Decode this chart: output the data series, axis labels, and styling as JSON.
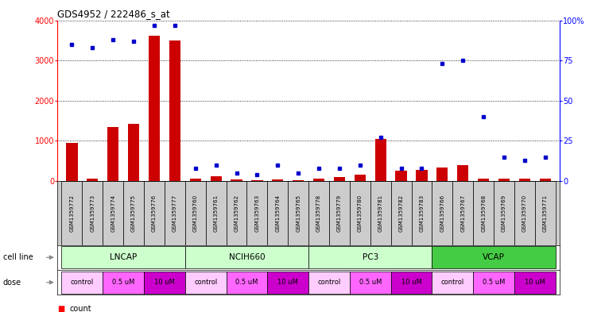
{
  "title": "GDS4952 / 222486_s_at",
  "samples": [
    "GSM1359772",
    "GSM1359773",
    "GSM1359774",
    "GSM1359775",
    "GSM1359776",
    "GSM1359777",
    "GSM1359760",
    "GSM1359761",
    "GSM1359762",
    "GSM1359763",
    "GSM1359764",
    "GSM1359765",
    "GSM1359778",
    "GSM1359779",
    "GSM1359780",
    "GSM1359781",
    "GSM1359782",
    "GSM1359783",
    "GSM1359766",
    "GSM1359767",
    "GSM1359768",
    "GSM1359769",
    "GSM1359770",
    "GSM1359771"
  ],
  "counts": [
    950,
    50,
    1350,
    1420,
    3620,
    3500,
    50,
    120,
    30,
    20,
    30,
    20,
    50,
    100,
    150,
    1050,
    250,
    280,
    330,
    390,
    50,
    60,
    60,
    60
  ],
  "percentile_ranks": [
    85,
    83,
    88,
    87,
    97,
    97,
    8,
    10,
    5,
    4,
    10,
    5,
    8,
    8,
    10,
    27,
    8,
    8,
    73,
    75,
    40,
    15,
    13,
    15
  ],
  "cell_line_data": [
    {
      "name": "LNCAP",
      "start": 0,
      "end": 6,
      "color": "#ccffcc"
    },
    {
      "name": "NCIH660",
      "start": 6,
      "end": 12,
      "color": "#ccffcc"
    },
    {
      "name": "PC3",
      "start": 12,
      "end": 18,
      "color": "#ccffcc"
    },
    {
      "name": "VCAP",
      "start": 18,
      "end": 24,
      "color": "#44cc44"
    }
  ],
  "dose_data": [
    {
      "label": "control",
      "start": 0,
      "end": 2,
      "color": "#ffccff"
    },
    {
      "label": "0.5 uM",
      "start": 2,
      "end": 4,
      "color": "#ff66ff"
    },
    {
      "label": "10 uM",
      "start": 4,
      "end": 6,
      "color": "#cc00cc"
    },
    {
      "label": "control",
      "start": 6,
      "end": 8,
      "color": "#ffccff"
    },
    {
      "label": "0.5 uM",
      "start": 8,
      "end": 10,
      "color": "#ff66ff"
    },
    {
      "label": "10 uM",
      "start": 10,
      "end": 12,
      "color": "#cc00cc"
    },
    {
      "label": "control",
      "start": 12,
      "end": 14,
      "color": "#ffccff"
    },
    {
      "label": "0.5 uM",
      "start": 14,
      "end": 16,
      "color": "#ff66ff"
    },
    {
      "label": "10 uM",
      "start": 16,
      "end": 18,
      "color": "#cc00cc"
    },
    {
      "label": "control",
      "start": 18,
      "end": 20,
      "color": "#ffccff"
    },
    {
      "label": "0.5 uM",
      "start": 20,
      "end": 22,
      "color": "#ff66ff"
    },
    {
      "label": "10 uM",
      "start": 22,
      "end": 24,
      "color": "#cc00cc"
    }
  ],
  "bar_color": "#cc0000",
  "dot_color": "#0000cc",
  "ylim_left": [
    0,
    4000
  ],
  "ylim_right": [
    0,
    100
  ],
  "yticks_left": [
    0,
    1000,
    2000,
    3000,
    4000
  ],
  "yticks_right": [
    0,
    25,
    50,
    75,
    100
  ],
  "ytick_labels_right": [
    "0",
    "25",
    "50",
    "75",
    "100%"
  ]
}
